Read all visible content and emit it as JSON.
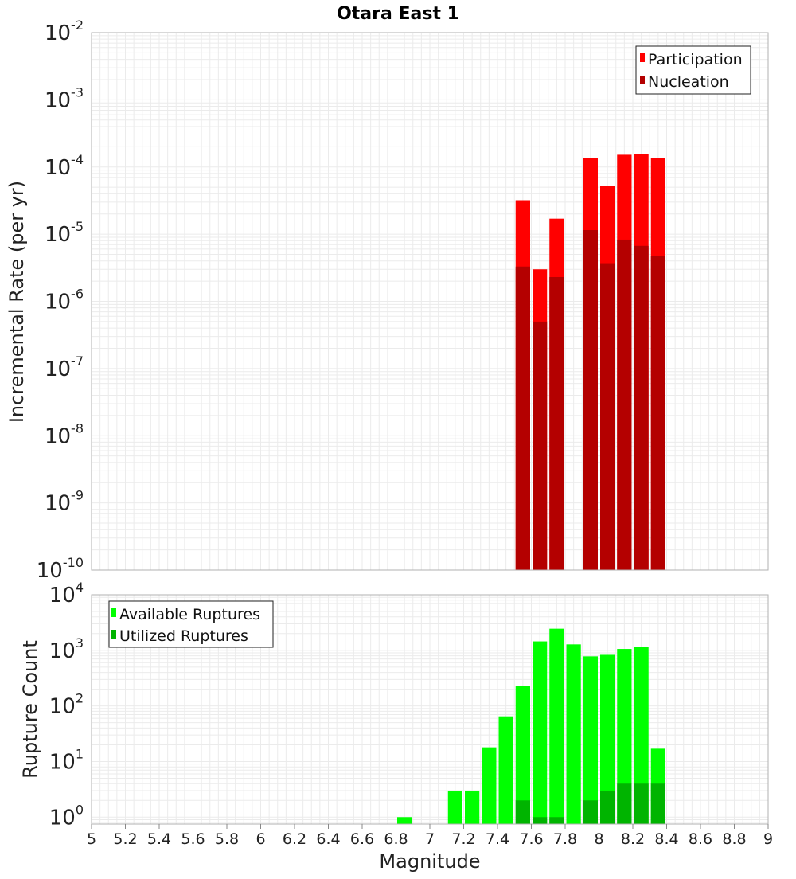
{
  "chart_data": [
    {
      "type": "bar",
      "title": "Otara East 1",
      "xlabel": "",
      "ylabel": "Incremental Rate (per yr)",
      "yscale": "log",
      "ylim": [
        1e-10,
        0.01
      ],
      "xlim": [
        5,
        9
      ],
      "y_tick_labels": [
        {
          "base": "10",
          "exp": "-10"
        },
        {
          "base": "10",
          "exp": "-9"
        },
        {
          "base": "10",
          "exp": "-8"
        },
        {
          "base": "10",
          "exp": "-7"
        },
        {
          "base": "10",
          "exp": "-6"
        },
        {
          "base": "10",
          "exp": "-5"
        },
        {
          "base": "10",
          "exp": "-4"
        },
        {
          "base": "10",
          "exp": "-3"
        },
        {
          "base": "10",
          "exp": "-2"
        }
      ],
      "bin_width": 0.1,
      "grid": true,
      "legend_position": "top-right",
      "series": [
        {
          "name": "Participation",
          "color": "#ff0000",
          "points": [
            {
              "x": 7.55,
              "y": 3.2e-05
            },
            {
              "x": 7.65,
              "y": 3e-06
            },
            {
              "x": 7.75,
              "y": 1.7e-05
            },
            {
              "x": 7.95,
              "y": 0.000135
            },
            {
              "x": 8.05,
              "y": 5.3e-05
            },
            {
              "x": 8.15,
              "y": 0.000152
            },
            {
              "x": 8.25,
              "y": 0.000155
            },
            {
              "x": 8.35,
              "y": 0.000135
            }
          ]
        },
        {
          "name": "Nucleation",
          "color": "#b40000",
          "points": [
            {
              "x": 7.55,
              "y": 3.3e-06
            },
            {
              "x": 7.65,
              "y": 5e-07
            },
            {
              "x": 7.75,
              "y": 2.3e-06
            },
            {
              "x": 7.95,
              "y": 1.15e-05
            },
            {
              "x": 8.05,
              "y": 3.7e-06
            },
            {
              "x": 8.15,
              "y": 8.3e-06
            },
            {
              "x": 8.25,
              "y": 6.7e-06
            },
            {
              "x": 8.35,
              "y": 4.7e-06
            }
          ]
        }
      ]
    },
    {
      "type": "bar",
      "title": "",
      "xlabel": "Magnitude",
      "ylabel": "Rupture Count",
      "yscale": "log",
      "ylim": [
        0.75,
        10000
      ],
      "xlim": [
        5,
        9
      ],
      "y_tick_labels": [
        {
          "base": "10",
          "exp": "0"
        },
        {
          "base": "10",
          "exp": "1"
        },
        {
          "base": "10",
          "exp": "2"
        },
        {
          "base": "10",
          "exp": "3"
        },
        {
          "base": "10",
          "exp": "4"
        }
      ],
      "x_tick_labels": [
        "5",
        "5.2",
        "5.4",
        "5.6",
        "5.8",
        "6",
        "6.2",
        "6.4",
        "6.6",
        "6.8",
        "7",
        "7.2",
        "7.4",
        "7.6",
        "7.8",
        "8",
        "8.2",
        "8.4",
        "8.6",
        "8.8",
        "9"
      ],
      "bin_width": 0.1,
      "grid": true,
      "legend_position": "top-left",
      "series": [
        {
          "name": "Available Ruptures",
          "color": "#00ff00",
          "points": [
            {
              "x": 6.85,
              "y": 1
            },
            {
              "x": 7.15,
              "y": 3
            },
            {
              "x": 7.25,
              "y": 3
            },
            {
              "x": 7.35,
              "y": 18
            },
            {
              "x": 7.45,
              "y": 65
            },
            {
              "x": 7.55,
              "y": 230
            },
            {
              "x": 7.65,
              "y": 1450
            },
            {
              "x": 7.75,
              "y": 2450
            },
            {
              "x": 7.85,
              "y": 1280
            },
            {
              "x": 7.95,
              "y": 780
            },
            {
              "x": 8.05,
              "y": 830
            },
            {
              "x": 8.15,
              "y": 1060
            },
            {
              "x": 8.25,
              "y": 1150
            },
            {
              "x": 8.35,
              "y": 17
            }
          ]
        },
        {
          "name": "Utilized Ruptures",
          "color": "#00b400",
          "points": [
            {
              "x": 7.55,
              "y": 2
            },
            {
              "x": 7.65,
              "y": 1
            },
            {
              "x": 7.75,
              "y": 1
            },
            {
              "x": 7.95,
              "y": 2
            },
            {
              "x": 8.05,
              "y": 3
            },
            {
              "x": 8.15,
              "y": 4
            },
            {
              "x": 8.25,
              "y": 4
            },
            {
              "x": 8.35,
              "y": 4
            }
          ]
        }
      ]
    }
  ]
}
